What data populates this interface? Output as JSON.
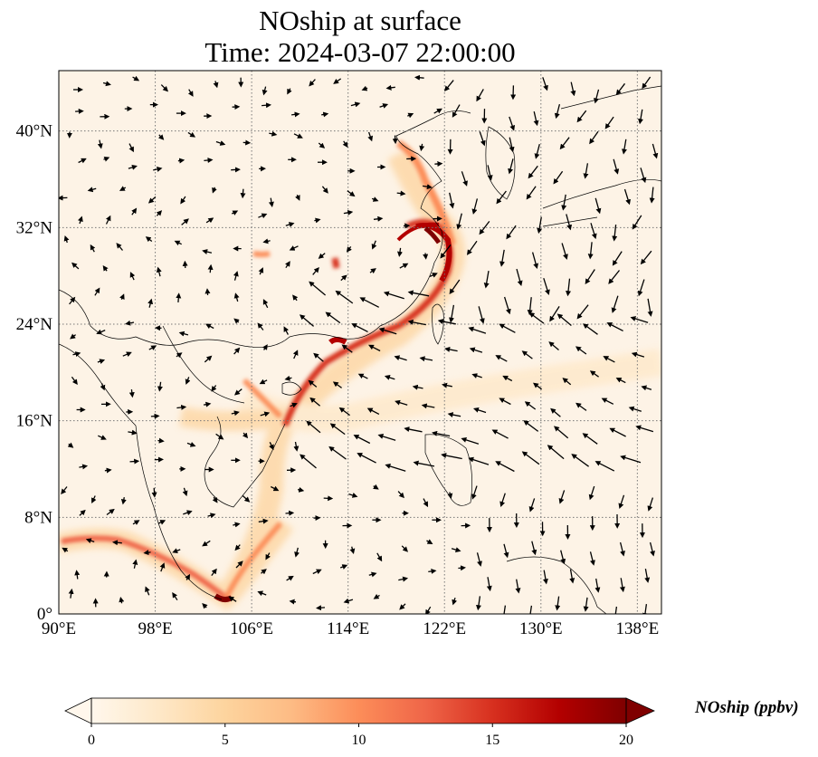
{
  "title": {
    "line1": "NOship at surface",
    "line2": "Time: 2024-03-07 22:00:00"
  },
  "map": {
    "projection": "PlateCarree",
    "lon_range": [
      90,
      140
    ],
    "lat_range": [
      0,
      45
    ],
    "lon_ticks": [
      90,
      98,
      106,
      114,
      122,
      130,
      138
    ],
    "lat_ticks": [
      0,
      8,
      16,
      24,
      32,
      40
    ],
    "lon_tick_labels": [
      "90°E",
      "98°E",
      "106°E",
      "114°E",
      "122°E",
      "130°E",
      "138°E"
    ],
    "lat_tick_labels": [
      "0°",
      "8°N",
      "16°N",
      "24°N",
      "32°N",
      "40°N"
    ],
    "gridlines": "dotted",
    "coastlines": true,
    "borders": true,
    "wind_vectors": true
  },
  "colorbar": {
    "label": "NOship (ppbv)",
    "colormap": "OrRd",
    "range": [
      0,
      20
    ],
    "extend": "both",
    "ticks": [
      0,
      5,
      10,
      15,
      20
    ],
    "tick_labels": [
      "0",
      "5",
      "10",
      "15",
      "20"
    ]
  },
  "colors": {
    "low": "#fff7ec",
    "mid": "#fc8d59",
    "high": "#7f0000"
  }
}
